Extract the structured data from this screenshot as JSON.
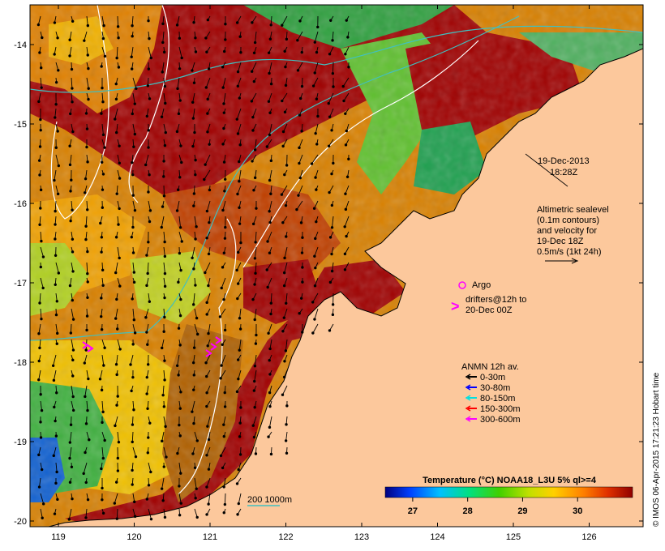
{
  "map": {
    "lat_ticks": [
      "-14",
      "-15",
      "-16",
      "-17",
      "-18",
      "-19",
      "-20"
    ],
    "lon_ticks": [
      "119",
      "120",
      "121",
      "122",
      "123",
      "124",
      "125",
      "126"
    ],
    "lat_values": [
      -14,
      -15,
      -16,
      -17,
      -18,
      -19,
      -20
    ],
    "lon_values": [
      119,
      120,
      121,
      122,
      123,
      124,
      125,
      126
    ],
    "colors": {
      "land": "#fcc89c",
      "hot": "#a00000",
      "warm": "#e07000",
      "mid": "#f0b000",
      "cool": "#98d020",
      "cold": "#10b040",
      "coldest": "#1060d0",
      "contour": "#ffffff",
      "drifter": "#ff00ff",
      "current_bar": "#40c0c0"
    }
  },
  "annotations": {
    "date": "19-Dec-2013",
    "time": "18:28Z",
    "alt_lines": [
      "Altimetric sealevel",
      "(0.1m contours)",
      "and velocity for",
      "19-Dec 18Z",
      "0.5m/s (1kt 24h)"
    ],
    "argo_label": "Argo",
    "drifters_lines": [
      "drifters@12h to",
      "20-Dec 00Z"
    ],
    "drifters_glyph": ">",
    "anmn_title": "ANMN 12h av.",
    "anmn_legend": [
      {
        "label": "0-30m",
        "color": "#000000"
      },
      {
        "label": "30-80m",
        "color": "#0000ff"
      },
      {
        "label": "80-150m",
        "color": "#00e0e0"
      },
      {
        "label": "150-300m",
        "color": "#ff0000"
      },
      {
        "label": "300-600m",
        "color": "#ff00ff"
      }
    ],
    "depth_contour_label": "200  1000m"
  },
  "colorbar": {
    "title": "Temperature (°C) NOAA18_L3U 5% ql>=4",
    "ticks": [
      "27",
      "28",
      "29",
      "30"
    ],
    "tick_values": [
      27,
      28,
      29,
      30
    ],
    "range": [
      26.5,
      31.0
    ]
  },
  "footer": {
    "credit": "© IMOS 06-Apr-2015 17:21:23 Hobart time"
  }
}
